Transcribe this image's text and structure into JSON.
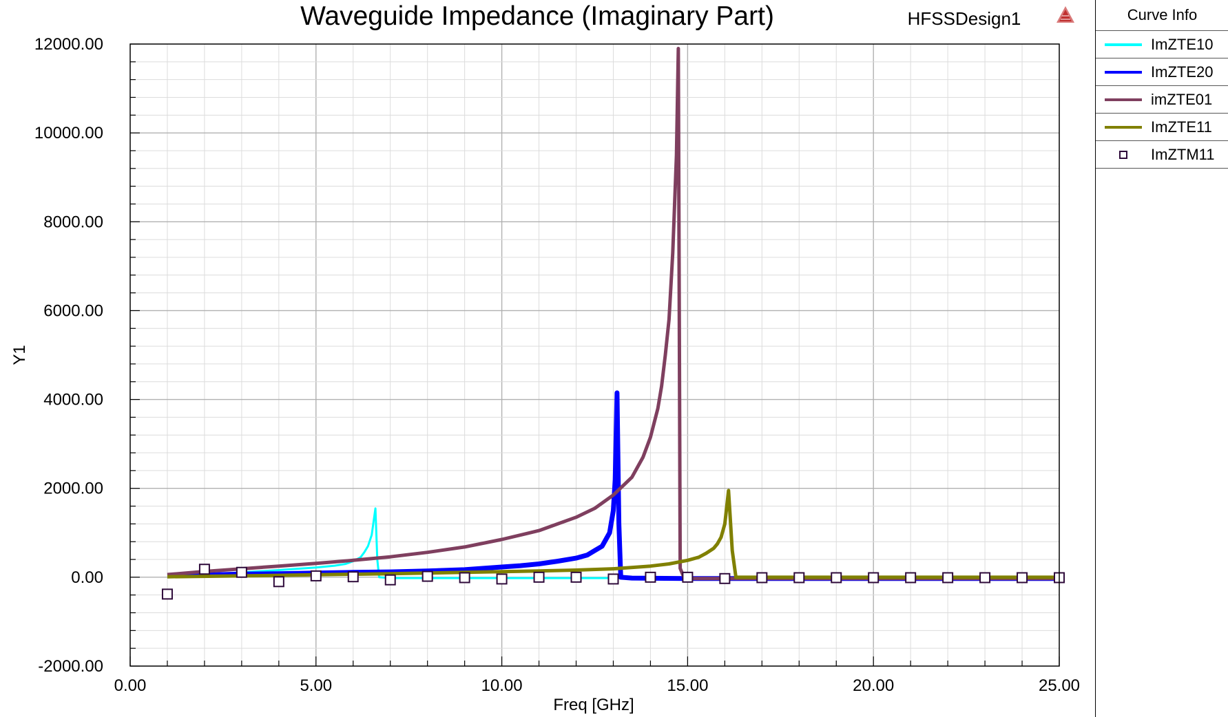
{
  "header": {
    "design_name": "HFSSDesign1",
    "logo_icon": "ansys-triangle-logo"
  },
  "chart_data": {
    "type": "line",
    "title": "Waveguide Impedance (Imaginary Part)",
    "xlabel": "Freq [GHz]",
    "ylabel": "Y1",
    "xlim": [
      0,
      25
    ],
    "ylim": [
      -2000,
      12000
    ],
    "x_ticks": [
      "0.00",
      "5.00",
      "10.00",
      "15.00",
      "20.00",
      "25.00"
    ],
    "y_ticks": [
      "-2000.00",
      "0.00",
      "2000.00",
      "4000.00",
      "6000.00",
      "8000.00",
      "10000.00",
      "12000.00"
    ],
    "grid": true,
    "legend_position": "right",
    "series": [
      {
        "name": "ImZTE10",
        "color": "#00ffff",
        "style": "line",
        "width": 3,
        "points": [
          [
            1.0,
            0
          ],
          [
            2.0,
            60
          ],
          [
            3.0,
            110
          ],
          [
            4.0,
            160
          ],
          [
            4.5,
            190
          ],
          [
            5.0,
            220
          ],
          [
            5.5,
            260
          ],
          [
            5.8,
            300
          ],
          [
            6.0,
            360
          ],
          [
            6.2,
            450
          ],
          [
            6.3,
            560
          ],
          [
            6.4,
            700
          ],
          [
            6.5,
            950
          ],
          [
            6.55,
            1250
          ],
          [
            6.6,
            1550
          ],
          [
            6.65,
            400
          ],
          [
            6.7,
            0
          ],
          [
            7.0,
            -20
          ],
          [
            8.0,
            -20
          ],
          [
            10.0,
            -20
          ],
          [
            13.0,
            -20
          ],
          [
            25.0,
            -20
          ]
        ]
      },
      {
        "name": "ImZTE20",
        "color": "#0000ff",
        "style": "line",
        "width": 7,
        "points": [
          [
            1.0,
            30
          ],
          [
            2.0,
            50
          ],
          [
            3.0,
            70
          ],
          [
            4.0,
            80
          ],
          [
            5.0,
            95
          ],
          [
            6.0,
            110
          ],
          [
            7.0,
            120
          ],
          [
            8.0,
            140
          ],
          [
            9.0,
            170
          ],
          [
            10.0,
            230
          ],
          [
            10.5,
            260
          ],
          [
            11.0,
            300
          ],
          [
            11.5,
            360
          ],
          [
            12.0,
            430
          ],
          [
            12.3,
            500
          ],
          [
            12.5,
            600
          ],
          [
            12.7,
            700
          ],
          [
            12.8,
            850
          ],
          [
            12.9,
            1000
          ],
          [
            13.0,
            1500
          ],
          [
            13.05,
            2200
          ],
          [
            13.1,
            4150
          ],
          [
            13.15,
            1200
          ],
          [
            13.2,
            0
          ],
          [
            13.5,
            -20
          ],
          [
            15.0,
            -30
          ],
          [
            25.0,
            -30
          ]
        ]
      },
      {
        "name": "imZTE01",
        "color": "#7f3f5f",
        "style": "line",
        "width": 5,
        "points": [
          [
            1.0,
            60
          ],
          [
            2.0,
            130
          ],
          [
            3.0,
            190
          ],
          [
            4.0,
            250
          ],
          [
            5.0,
            310
          ],
          [
            6.0,
            380
          ],
          [
            7.0,
            460
          ],
          [
            8.0,
            560
          ],
          [
            9.0,
            680
          ],
          [
            10.0,
            850
          ],
          [
            11.0,
            1050
          ],
          [
            12.0,
            1350
          ],
          [
            12.5,
            1550
          ],
          [
            13.0,
            1850
          ],
          [
            13.5,
            2250
          ],
          [
            13.8,
            2700
          ],
          [
            14.0,
            3150
          ],
          [
            14.2,
            3800
          ],
          [
            14.3,
            4300
          ],
          [
            14.4,
            5000
          ],
          [
            14.5,
            5800
          ],
          [
            14.6,
            7300
          ],
          [
            14.7,
            9500
          ],
          [
            14.75,
            11900
          ],
          [
            14.8,
            200
          ],
          [
            14.9,
            0
          ],
          [
            15.0,
            -30
          ],
          [
            25.0,
            -30
          ]
        ]
      },
      {
        "name": "ImZTE11",
        "color": "#808000",
        "style": "line",
        "width": 5,
        "points": [
          [
            1.0,
            10
          ],
          [
            3.0,
            30
          ],
          [
            5.0,
            55
          ],
          [
            7.0,
            80
          ],
          [
            9.0,
            110
          ],
          [
            11.0,
            140
          ],
          [
            12.0,
            160
          ],
          [
            13.0,
            190
          ],
          [
            14.0,
            250
          ],
          [
            14.5,
            300
          ],
          [
            15.0,
            380
          ],
          [
            15.3,
            450
          ],
          [
            15.5,
            540
          ],
          [
            15.7,
            650
          ],
          [
            15.8,
            750
          ],
          [
            15.9,
            900
          ],
          [
            16.0,
            1200
          ],
          [
            16.1,
            1950
          ],
          [
            16.2,
            600
          ],
          [
            16.3,
            0
          ],
          [
            17.0,
            0
          ],
          [
            25.0,
            0
          ]
        ]
      },
      {
        "name": "ImZTM11",
        "color": "#2e0a3a",
        "style": "marker",
        "points": [
          [
            1,
            -380
          ],
          [
            2,
            180
          ],
          [
            3,
            110
          ],
          [
            4,
            -100
          ],
          [
            5,
            30
          ],
          [
            6,
            10
          ],
          [
            7,
            -60
          ],
          [
            8,
            20
          ],
          [
            9,
            -10
          ],
          [
            10,
            -40
          ],
          [
            11,
            0
          ],
          [
            12,
            0
          ],
          [
            13,
            -40
          ],
          [
            14,
            0
          ],
          [
            15,
            0
          ],
          [
            16,
            -30
          ],
          [
            17,
            -10
          ],
          [
            18,
            -10
          ],
          [
            19,
            -10
          ],
          [
            20,
            -10
          ],
          [
            21,
            -10
          ],
          [
            22,
            -10
          ],
          [
            23,
            -10
          ],
          [
            24,
            -10
          ],
          [
            25,
            -10
          ]
        ]
      }
    ]
  },
  "legend": {
    "header": "Curve Info",
    "items": [
      {
        "label": "ImZTE10",
        "color": "#00ffff",
        "kind": "line"
      },
      {
        "label": "ImZTE20",
        "color": "#0000ff",
        "kind": "line"
      },
      {
        "label": "imZTE01",
        "color": "#7f3f5f",
        "kind": "line"
      },
      {
        "label": "ImZTE11",
        "color": "#808000",
        "kind": "line"
      },
      {
        "label": "ImZTM11",
        "color": "#2e0a3a",
        "kind": "marker"
      }
    ]
  }
}
